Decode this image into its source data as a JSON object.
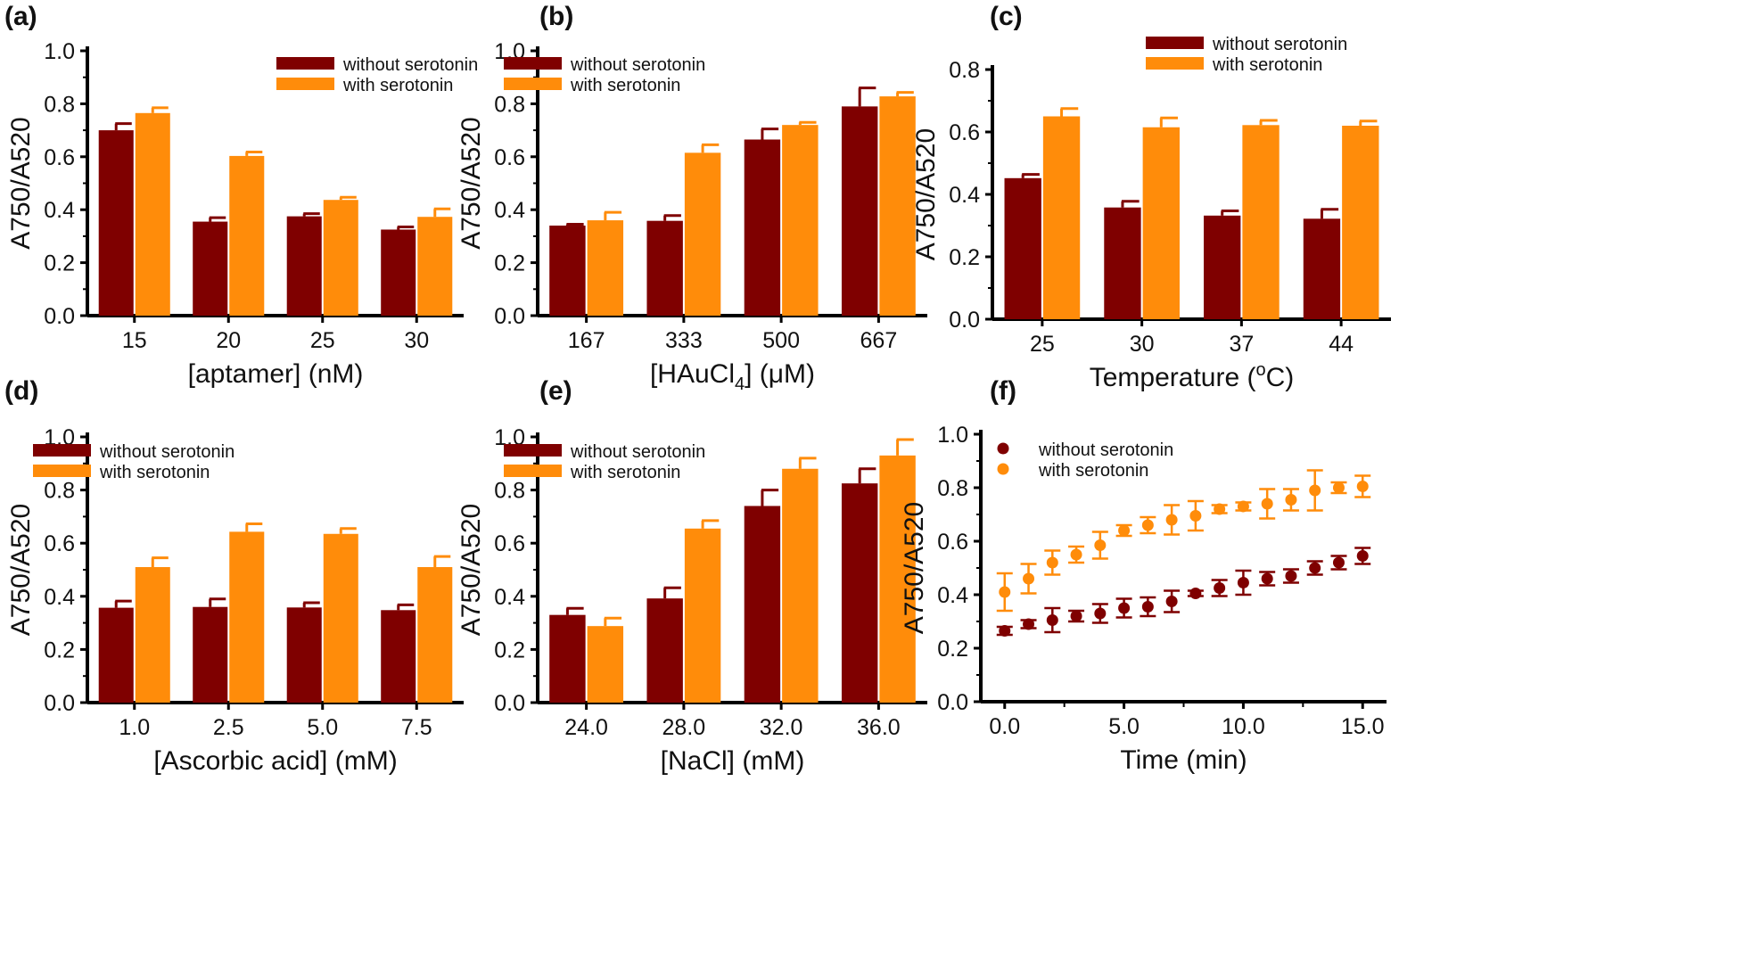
{
  "colors": {
    "without": "#7f0000",
    "with": "#ff8c0a",
    "axis": "#000000"
  },
  "chart_data": [
    {
      "panel": "(a)",
      "type": "bar",
      "categories": [
        "15",
        "20",
        "25",
        "30"
      ],
      "ylim": [
        0,
        1.0
      ],
      "yticks": [
        "0.0",
        "0.2",
        "0.4",
        "0.6",
        "0.8",
        "1.0"
      ],
      "ylabel": "A750/A520",
      "xlabel": [
        {
          "t": "[aptamer] (nM)"
        }
      ],
      "legend": "top-right",
      "series": [
        {
          "name": "without serotonin",
          "values": [
            0.7,
            0.355,
            0.375,
            0.325
          ],
          "errors": [
            0.025,
            0.015,
            0.01,
            0.01
          ]
        },
        {
          "name": "with serotonin",
          "values": [
            0.765,
            0.603,
            0.437,
            0.373
          ],
          "errors": [
            0.02,
            0.015,
            0.01,
            0.03
          ]
        }
      ]
    },
    {
      "panel": "(b)",
      "type": "bar",
      "categories": [
        "167",
        "333",
        "500",
        "667"
      ],
      "ylim": [
        0,
        1.0
      ],
      "yticks": [
        "0.0",
        "0.2",
        "0.4",
        "0.6",
        "0.8",
        "1.0"
      ],
      "ylabel": "A750/A520",
      "xlabel": [
        {
          "t": "[HAuCl"
        },
        {
          "t": "4",
          "sub": true
        },
        {
          "t": "] (μM)"
        }
      ],
      "legend": "top-left",
      "series": [
        {
          "name": "without serotonin",
          "values": [
            0.34,
            0.358,
            0.665,
            0.79
          ],
          "errors": [
            0.005,
            0.02,
            0.04,
            0.07
          ]
        },
        {
          "name": "with serotonin",
          "values": [
            0.36,
            0.615,
            0.72,
            0.828
          ],
          "errors": [
            0.03,
            0.03,
            0.01,
            0.015
          ]
        }
      ]
    },
    {
      "panel": "(c)",
      "type": "bar",
      "categories": [
        "25",
        "30",
        "37",
        "44"
      ],
      "ylim": [
        0,
        0.8
      ],
      "yticks": [
        "0.0",
        "0.2",
        "0.4",
        "0.6",
        "0.8"
      ],
      "ylabel": "A750/A520",
      "xlabel": [
        {
          "t": "Temperature ("
        },
        {
          "t": "o",
          "sup": true
        },
        {
          "t": "C)"
        }
      ],
      "legend": "top-right",
      "series": [
        {
          "name": "without serotonin",
          "values": [
            0.452,
            0.358,
            0.332,
            0.322
          ],
          "errors": [
            0.012,
            0.02,
            0.015,
            0.03
          ]
        },
        {
          "name": "with serotonin",
          "values": [
            0.65,
            0.615,
            0.622,
            0.62
          ],
          "errors": [
            0.025,
            0.03,
            0.015,
            0.015
          ]
        }
      ]
    },
    {
      "panel": "(d)",
      "type": "bar",
      "categories": [
        "1.0",
        "2.5",
        "5.0",
        "7.5"
      ],
      "ylim": [
        0,
        1.0
      ],
      "yticks": [
        "0.0",
        "0.2",
        "0.4",
        "0.6",
        "0.8",
        "1.0"
      ],
      "ylabel": "A750/A520",
      "xlabel": [
        {
          "t": "[Ascorbic acid] (mM)"
        }
      ],
      "legend": "top-left",
      "series": [
        {
          "name": "without serotonin",
          "values": [
            0.357,
            0.36,
            0.358,
            0.348
          ],
          "errors": [
            0.025,
            0.03,
            0.018,
            0.02
          ]
        },
        {
          "name": "with serotonin",
          "values": [
            0.51,
            0.643,
            0.635,
            0.51
          ],
          "errors": [
            0.035,
            0.03,
            0.02,
            0.04
          ]
        }
      ]
    },
    {
      "panel": "(e)",
      "type": "bar",
      "categories": [
        "24.0",
        "28.0",
        "32.0",
        "36.0"
      ],
      "ylim": [
        0,
        1.0
      ],
      "yticks": [
        "0.0",
        "0.2",
        "0.4",
        "0.6",
        "0.8",
        "1.0"
      ],
      "ylabel": "A750/A520",
      "xlabel": [
        {
          "t": "[NaCl] (mM)"
        }
      ],
      "legend": "top-left",
      "series": [
        {
          "name": "without serotonin",
          "values": [
            0.33,
            0.392,
            0.74,
            0.825
          ],
          "errors": [
            0.025,
            0.04,
            0.06,
            0.055
          ]
        },
        {
          "name": "with serotonin",
          "values": [
            0.288,
            0.655,
            0.88,
            0.93
          ],
          "errors": [
            0.03,
            0.03,
            0.04,
            0.06
          ]
        }
      ]
    },
    {
      "panel": "(f)",
      "type": "scatter",
      "x": [
        0,
        1,
        2,
        3,
        4,
        5,
        6,
        7,
        8,
        9,
        10,
        11,
        12,
        13,
        14,
        15
      ],
      "xlim": [
        -1,
        16
      ],
      "xticks": [
        0,
        5,
        10,
        15
      ],
      "xticklabels": [
        "0.0",
        "5.0",
        "10.0",
        "15.0"
      ],
      "ylim": [
        0,
        1.0
      ],
      "yticks": [
        "0.0",
        "0.2",
        "0.4",
        "0.6",
        "0.8",
        "1.0"
      ],
      "ylabel": "A750/A520",
      "xlabel": [
        {
          "t": "Time (min)"
        }
      ],
      "legend": "top-left",
      "series": [
        {
          "name": "without serotonin",
          "values": [
            0.265,
            0.29,
            0.305,
            0.32,
            0.33,
            0.35,
            0.355,
            0.375,
            0.405,
            0.425,
            0.445,
            0.46,
            0.47,
            0.5,
            0.52,
            0.545
          ],
          "errors": [
            0.015,
            0.015,
            0.045,
            0.02,
            0.035,
            0.035,
            0.035,
            0.04,
            0.01,
            0.03,
            0.045,
            0.025,
            0.025,
            0.025,
            0.025,
            0.03
          ]
        },
        {
          "name": "with serotonin",
          "values": [
            0.41,
            0.46,
            0.52,
            0.55,
            0.585,
            0.64,
            0.66,
            0.68,
            0.695,
            0.72,
            0.73,
            0.74,
            0.755,
            0.79,
            0.8,
            0.805
          ],
          "errors": [
            0.07,
            0.055,
            0.045,
            0.03,
            0.05,
            0.02,
            0.03,
            0.055,
            0.055,
            0.015,
            0.015,
            0.055,
            0.04,
            0.075,
            0.02,
            0.04
          ]
        }
      ]
    }
  ]
}
